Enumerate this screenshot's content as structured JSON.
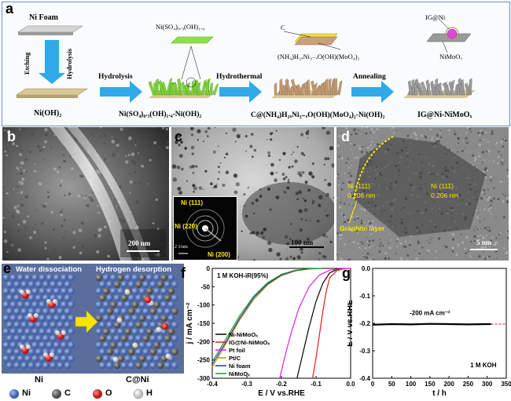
{
  "panel_a": {
    "letter": "a",
    "ni_foam": "Ni Foam",
    "etching": "Etching",
    "hydrolysis_vertical": "Hydrolysis",
    "hydrolysis_arrow": "Hydrolysis",
    "hydrothermal_arrow": "Hydrothermal",
    "annealing_arrow": "Annealing",
    "stage1": "Ni(OH)₂",
    "stage2": "Ni(SO₄)₀.₃(OH)₁.₄-Ni(OH)₂",
    "stage3": "C@(NH₄)H₂ₓNi₃₋ₓO(OH)(MoO₄)₂-Ni(OH)₂",
    "stage4": "IG@Ni-NiMoOₓ",
    "callout2": "Ni(SO₄)₀.₃(OH)₁.₄",
    "callout3_c": "C",
    "callout3_compound": "(NH₄)H₂ₓNi₃₋ₓO(OH)(MoO₄)₂",
    "callout4_top": "IG@Ni",
    "callout4_bottom": "NiMoOₓ"
  },
  "panel_b": {
    "letter": "b",
    "scale": "200 nm"
  },
  "panel_c": {
    "letter": "c",
    "scale": "100 nm",
    "saed_111": "Ni (111)",
    "saed_220": "Ni (220)",
    "saed_200": "Ni (200)",
    "saed_scale": "2 1/nm"
  },
  "panel_d": {
    "letter": "d",
    "scale": "5 nm",
    "lattice1_plane": "Ni (111)",
    "lattice1_d": "0.206 nm",
    "lattice2_plane": "Ni (111)",
    "lattice2_d": "0.206 nm",
    "graphite": "Graphite layer"
  },
  "panel_e": {
    "letter": "e",
    "left_title": "Water dissociation",
    "right_title": "Hydrogen desorption",
    "left_label": "Ni",
    "right_label": "C@Ni",
    "legend": [
      "Ni",
      "C",
      "O",
      "H"
    ],
    "colors": {
      "Ni": "#3f5fa8",
      "C": "#6b6b6b",
      "O": "#d21f1f",
      "H": "#f2f2f2",
      "arrow": "#f5e400"
    }
  },
  "chart_data": [
    {
      "panel": "f",
      "type": "line",
      "title": "1 M KOH-iR(95%)",
      "xlabel": "E / V vs.RHE",
      "ylabel": "j / mA cm⁻²",
      "xlim": [
        -0.4,
        0.0
      ],
      "ylim": [
        -300,
        0
      ],
      "x_ticks": [
        "-0.4",
        "-0.3",
        "-0.2",
        "-0.1",
        "0.0"
      ],
      "y_ticks": [
        "0",
        "-50",
        "-100",
        "-150",
        "-200",
        "-250",
        "-300"
      ],
      "series": [
        {
          "name": "Ni-NiMoOₓ",
          "color": "#000000",
          "points": [
            [
              -0.155,
              -300
            ],
            [
              -0.14,
              -240
            ],
            [
              -0.12,
              -160
            ],
            [
              -0.1,
              -90
            ],
            [
              -0.08,
              -40
            ],
            [
              -0.06,
              -12
            ],
            [
              -0.04,
              -3
            ],
            [
              -0.02,
              0
            ]
          ]
        },
        {
          "name": "IG@Ni-NiMoOₓ",
          "color": "#e0201e",
          "points": [
            [
              -0.11,
              -300
            ],
            [
              -0.1,
              -245
            ],
            [
              -0.09,
              -180
            ],
            [
              -0.08,
              -115
            ],
            [
              -0.07,
              -60
            ],
            [
              -0.06,
              -25
            ],
            [
              -0.04,
              -6
            ],
            [
              -0.02,
              -1
            ],
            [
              0.0,
              0
            ]
          ]
        },
        {
          "name": "Pt foil",
          "color": "#e021e0",
          "points": [
            [
              -0.205,
              -300
            ],
            [
              -0.19,
              -240
            ],
            [
              -0.17,
              -170
            ],
            [
              -0.15,
              -110
            ],
            [
              -0.12,
              -50
            ],
            [
              -0.09,
              -18
            ],
            [
              -0.06,
              -5
            ],
            [
              -0.03,
              -1
            ],
            [
              0.0,
              0
            ]
          ]
        },
        {
          "name": "Pt/C",
          "color": "#b8a000",
          "points": [
            [
              -0.4,
              -270
            ],
            [
              -0.36,
              -205
            ],
            [
              -0.32,
              -140
            ],
            [
              -0.28,
              -85
            ],
            [
              -0.24,
              -45
            ],
            [
              -0.2,
              -20
            ],
            [
              -0.16,
              -7
            ],
            [
              -0.12,
              -2
            ],
            [
              -0.08,
              0
            ]
          ]
        },
        {
          "name": "Ni foam",
          "color": "#1f2fd8",
          "points": [
            [
              -0.4,
              -262
            ],
            [
              -0.36,
              -200
            ],
            [
              -0.32,
              -135
            ],
            [
              -0.28,
              -80
            ],
            [
              -0.24,
              -42
            ],
            [
              -0.2,
              -18
            ],
            [
              -0.16,
              -6
            ],
            [
              -0.12,
              -1
            ],
            [
              -0.08,
              0
            ]
          ]
        },
        {
          "name": "NiMoOₓ",
          "color": "#1fa01f",
          "points": [
            [
              -0.4,
              -255
            ],
            [
              -0.36,
              -192
            ],
            [
              -0.32,
              -128
            ],
            [
              -0.28,
              -76
            ],
            [
              -0.24,
              -39
            ],
            [
              -0.2,
              -16
            ],
            [
              -0.16,
              -5
            ],
            [
              -0.12,
              -1
            ],
            [
              -0.08,
              0
            ]
          ]
        }
      ]
    },
    {
      "panel": "g",
      "type": "line",
      "xlabel": "t / h",
      "ylabel": "E / V vs.RHE",
      "xlim": [
        0,
        350
      ],
      "ylim": [
        -0.4,
        0.0
      ],
      "x_ticks": [
        "0",
        "50",
        "100",
        "150",
        "200",
        "250",
        "300",
        "350"
      ],
      "y_ticks": [
        "0.0",
        "-0.1",
        "-0.2",
        "-0.3",
        "-0.4"
      ],
      "annotation": "-200 mA cm⁻²",
      "condition": "1 M KOH",
      "series": [
        {
          "name": "",
          "color": "#000000",
          "points": [
            [
              0,
              -0.205
            ],
            [
              50,
              -0.203
            ],
            [
              100,
              -0.204
            ],
            [
              150,
              -0.202
            ],
            [
              200,
              -0.203
            ],
            [
              250,
              -0.204
            ],
            [
              300,
              -0.203
            ],
            [
              310,
              -0.203
            ]
          ]
        }
      ],
      "reference_line": {
        "y": -0.203,
        "x": [
          310,
          350
        ],
        "color": "#d21f1f"
      }
    }
  ],
  "labels_f_letter": "f",
  "labels_g_letter": "g"
}
